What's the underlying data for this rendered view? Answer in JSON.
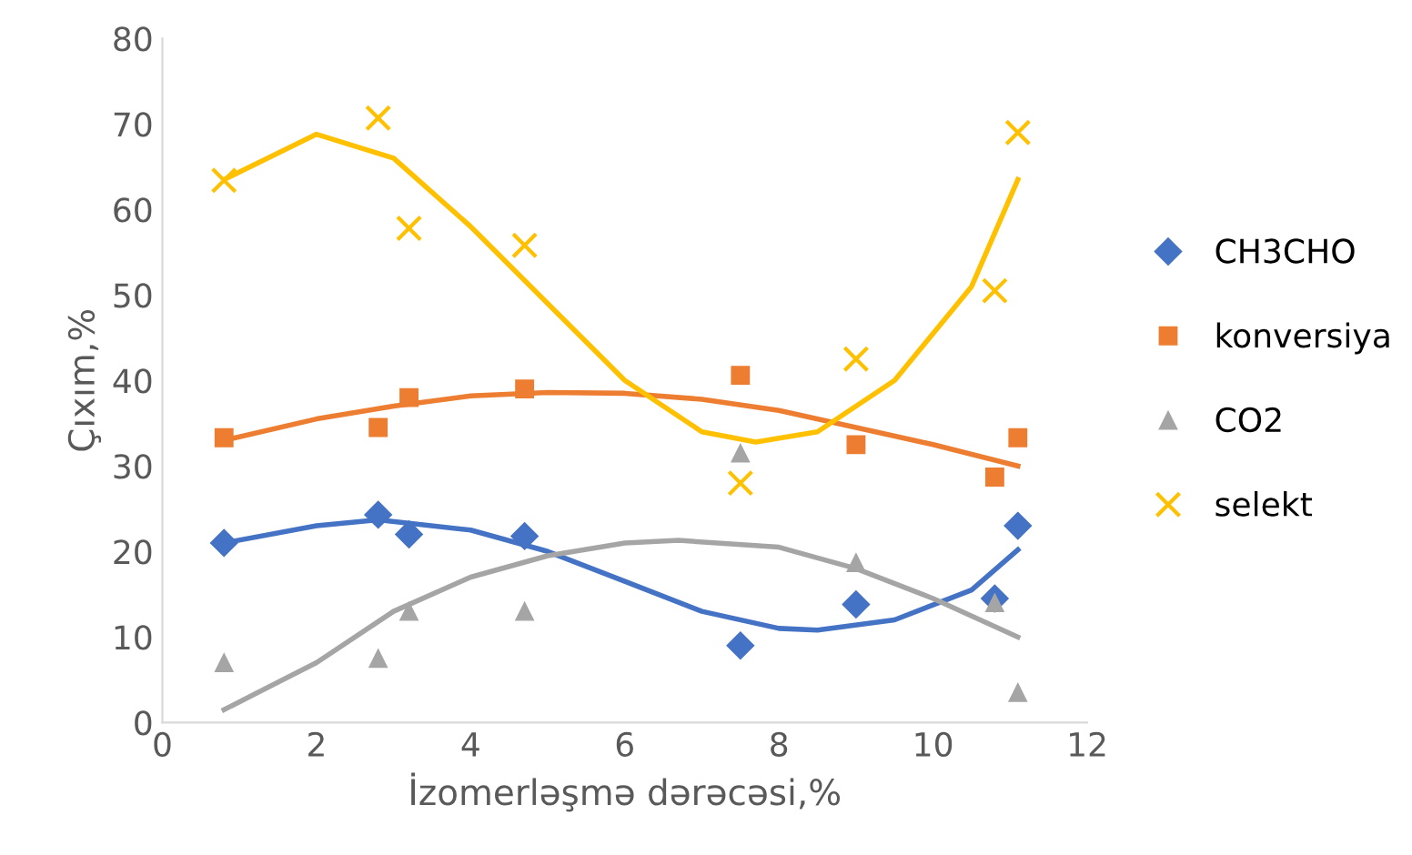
{
  "chart_data": {
    "type": "scatter",
    "xlabel": "İzomerləşmə dərəcəsi,%",
    "ylabel": "Çıxım,%",
    "xlim": [
      0,
      12
    ],
    "xticks": [
      0,
      2,
      4,
      6,
      8,
      10,
      12
    ],
    "ylim": [
      0,
      80
    ],
    "yticks": [
      0,
      10,
      20,
      30,
      40,
      50,
      60,
      70,
      80
    ],
    "grid": false,
    "legend": "right",
    "x": [
      0.8,
      2.8,
      3.2,
      4.7,
      7.5,
      9,
      10.8,
      11.1
    ],
    "series": [
      {
        "name": "CH3CHO",
        "color": "#4472c4",
        "marker": "diamond",
        "values": [
          21,
          24.3,
          22,
          21.8,
          9,
          13.8,
          14.5,
          23
        ]
      },
      {
        "name": "konversiya",
        "color": "#ed7d31",
        "marker": "square",
        "values": [
          33.3,
          34.5,
          38,
          39,
          40.6,
          32.5,
          28.7,
          33.3
        ]
      },
      {
        "name": "CO2",
        "color": "#a5a5a5",
        "marker": "triangle",
        "values": [
          7,
          7.5,
          13,
          13,
          31.5,
          18.7,
          14,
          3.5
        ]
      },
      {
        "name": "selekt",
        "color": "#ffc000",
        "marker": "cross",
        "values": [
          63.4,
          70.7,
          57.8,
          55.8,
          28,
          42.5,
          50.5,
          69
        ]
      },
      {
        "type": "line",
        "color": "#4472c4",
        "marker": "none",
        "x": [
          0.8,
          2,
          2.8,
          4,
          5,
          6,
          7,
          8,
          8.5,
          9.5,
          10.5,
          11.1
        ],
        "values": [
          21,
          23,
          23.7,
          22.5,
          20,
          16.5,
          13,
          11,
          10.8,
          12,
          15.5,
          20.2
        ]
      },
      {
        "type": "line",
        "color": "#ed7d31",
        "marker": "none",
        "x": [
          0.8,
          2,
          3,
          4,
          5,
          6,
          7,
          8,
          9,
          10,
          11.1
        ],
        "values": [
          33,
          35.5,
          37,
          38.2,
          38.6,
          38.5,
          37.8,
          36.5,
          34.5,
          32.5,
          30
        ]
      },
      {
        "type": "line",
        "color": "#a5a5a5",
        "marker": "none",
        "x": [
          0.8,
          2,
          3,
          4,
          5,
          6,
          6.7,
          8,
          9,
          10,
          11.1
        ],
        "values": [
          1.5,
          7,
          13,
          17,
          19.5,
          21,
          21.3,
          20.5,
          18,
          14.5,
          10
        ]
      },
      {
        "type": "line",
        "color": "#ffc000",
        "marker": "none",
        "x": [
          0.8,
          2,
          3,
          4,
          5,
          6,
          7,
          7.7,
          8.5,
          9.5,
          10.5,
          11.1
        ],
        "values": [
          63.5,
          68.8,
          66,
          58,
          49,
          40,
          34,
          32.8,
          34,
          40,
          51,
          63.5
        ]
      }
    ]
  }
}
